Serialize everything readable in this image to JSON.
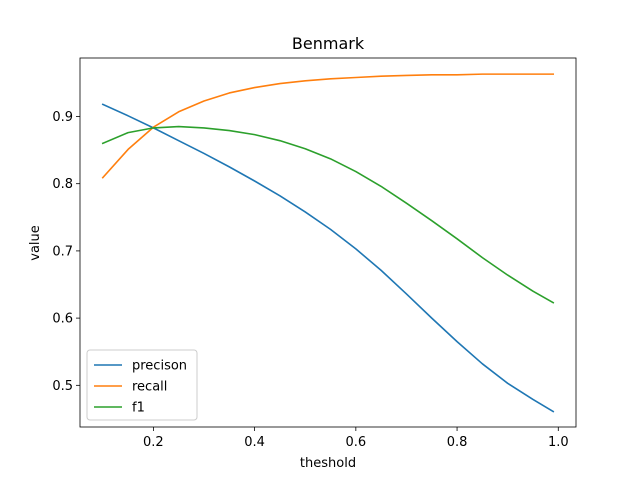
{
  "chart_data": {
    "type": "line",
    "title": "Benmark",
    "xlabel": "theshold",
    "ylabel": "value",
    "xlim": [
      0.055,
      1.035
    ],
    "ylim": [
      0.438,
      0.987
    ],
    "xticks": [
      0.2,
      0.4,
      0.6,
      0.8,
      1.0
    ],
    "xtick_labels": [
      "0.2",
      "0.4",
      "0.6",
      "0.8",
      "1.0"
    ],
    "yticks": [
      0.5,
      0.6,
      0.7,
      0.8,
      0.9
    ],
    "ytick_labels": [
      "0.5",
      "0.6",
      "0.7",
      "0.8",
      "0.9"
    ],
    "grid": false,
    "legend_position": "lower-left",
    "x": [
      0.1,
      0.15,
      0.2,
      0.25,
      0.3,
      0.35,
      0.4,
      0.45,
      0.5,
      0.55,
      0.6,
      0.65,
      0.7,
      0.75,
      0.8,
      0.85,
      0.9,
      0.95,
      0.99
    ],
    "series": [
      {
        "name": "precison",
        "color": "#1f77b4",
        "values": [
          0.918,
          0.901,
          0.883,
          0.864,
          0.845,
          0.825,
          0.804,
          0.782,
          0.758,
          0.732,
          0.703,
          0.671,
          0.636,
          0.6,
          0.565,
          0.532,
          0.503,
          0.479,
          0.461
        ]
      },
      {
        "name": "recall",
        "color": "#ff7f0e",
        "values": [
          0.809,
          0.851,
          0.884,
          0.907,
          0.923,
          0.935,
          0.943,
          0.949,
          0.953,
          0.956,
          0.958,
          0.96,
          0.961,
          0.962,
          0.962,
          0.963,
          0.963,
          0.963,
          0.963
        ]
      },
      {
        "name": "f1",
        "color": "#2ca02c",
        "values": [
          0.86,
          0.876,
          0.883,
          0.885,
          0.883,
          0.879,
          0.873,
          0.864,
          0.852,
          0.837,
          0.818,
          0.796,
          0.771,
          0.745,
          0.718,
          0.69,
          0.664,
          0.64,
          0.623
        ]
      }
    ]
  }
}
